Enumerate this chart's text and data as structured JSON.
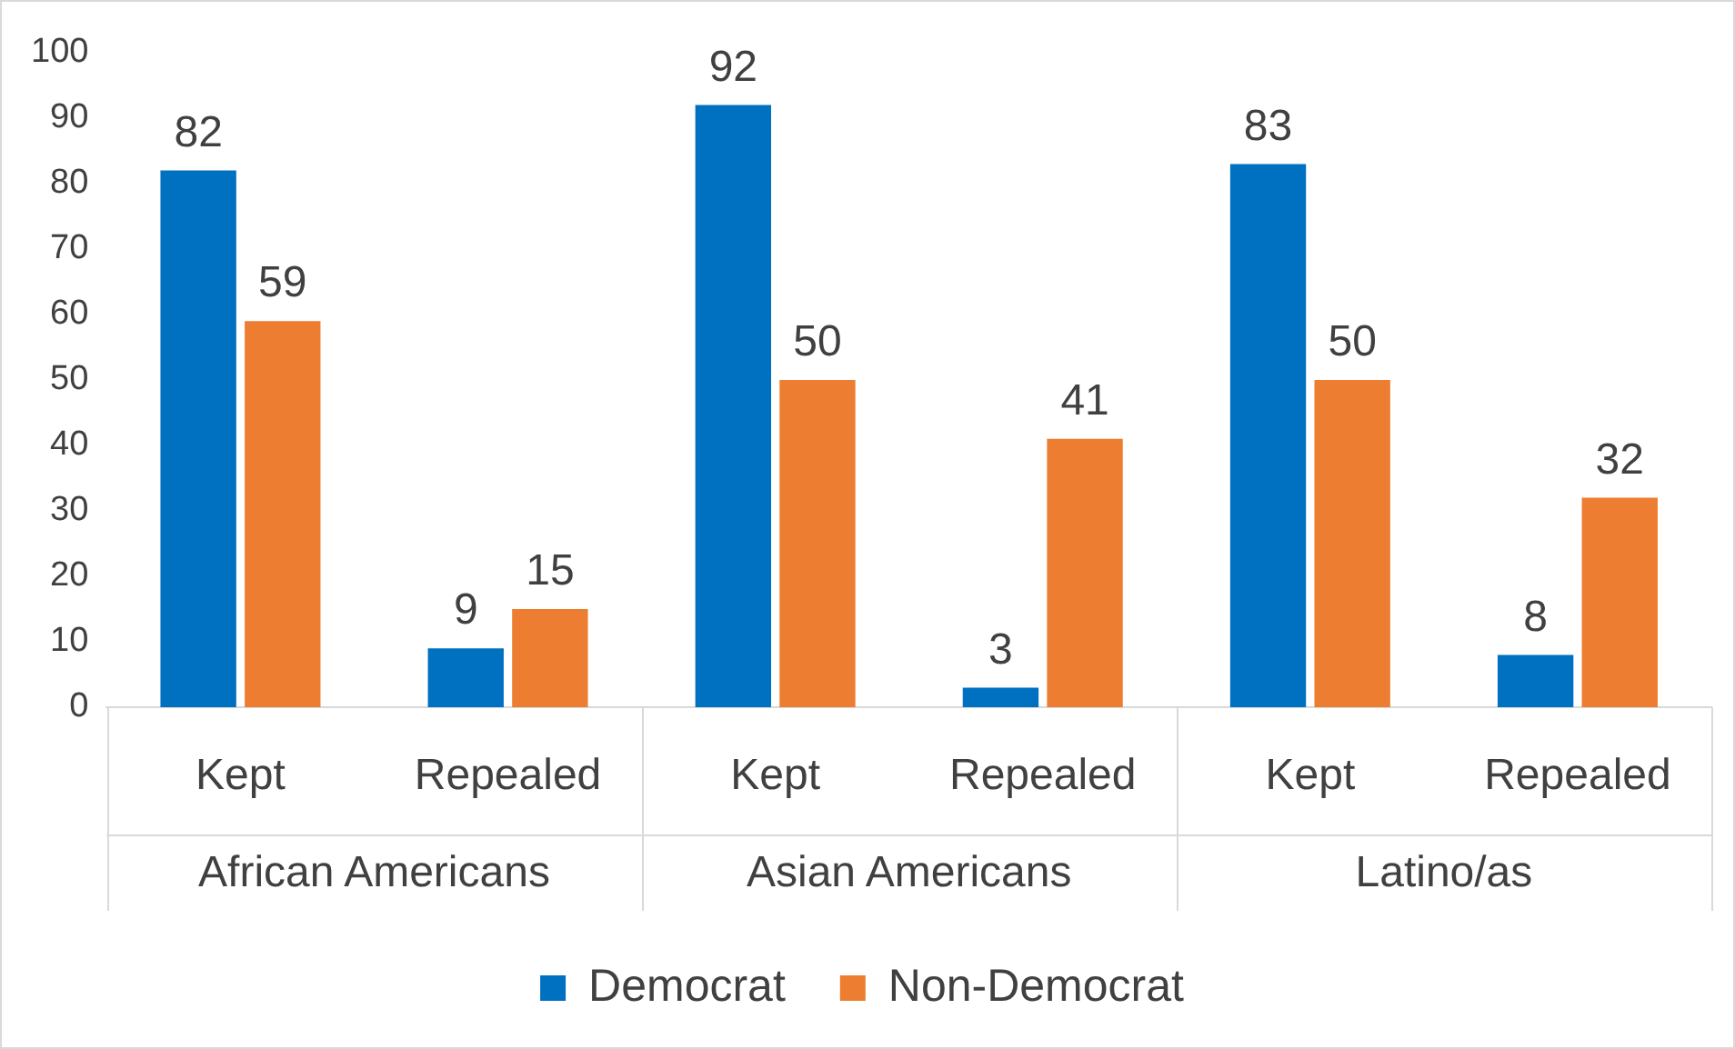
{
  "chart_data": {
    "type": "bar",
    "categories": [
      "Kept",
      "Repealed",
      "Kept",
      "Repealed",
      "Kept",
      "Repealed"
    ],
    "series": [
      {
        "name": "Democrat",
        "color": "#0070c0",
        "values": [
          82,
          9,
          92,
          3,
          83,
          8
        ]
      },
      {
        "name": "Non-Democrat",
        "color": "#ed7d31",
        "values": [
          59,
          15,
          50,
          41,
          50,
          32
        ]
      }
    ],
    "annotations": [
      "African Americans",
      "Asian Americans",
      "Latino/as"
    ],
    "ylim": [
      0,
      100
    ],
    "yticks": [
      0,
      10,
      20,
      30,
      40,
      50,
      60,
      70,
      80,
      90,
      100
    ],
    "grid": false,
    "legend": "bottom",
    "data_labels": true
  }
}
